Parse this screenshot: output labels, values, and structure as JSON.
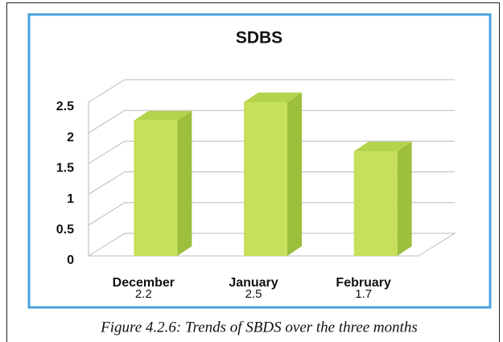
{
  "chart_data": {
    "type": "bar3d",
    "title": "SDBS",
    "categories": [
      "December",
      "January",
      "February"
    ],
    "values": [
      2.2,
      2.5,
      1.7
    ],
    "color": "#c6e05c",
    "ylim": [
      0,
      2.5
    ],
    "yticks": [
      0,
      0.5,
      1,
      1.5,
      2,
      2.5
    ],
    "grid": true,
    "caption": "Figure 4.2.6: Trends of SBDS over the three months"
  }
}
